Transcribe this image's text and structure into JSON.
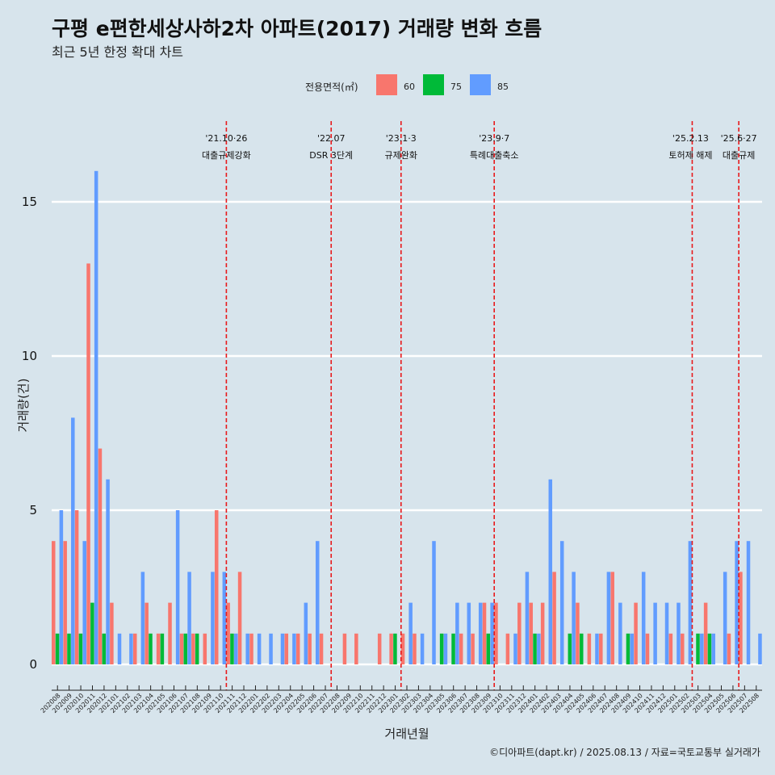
{
  "chart_data": {
    "type": "bar",
    "title": "구평 e편한세상사하2차 아파트(2017) 거래량 변화 흐름",
    "subtitle": "최근 5년 한정 확대 차트",
    "xlabel": "거래년월",
    "ylabel": "거래량(건)",
    "caption": "©디아파트(dapt.kr) / 2025.08.13 / 자료=국토교통부 실거래가",
    "legend": {
      "title": "전용면적(㎡)",
      "position": "top"
    },
    "ylim": [
      0,
      16.8
    ],
    "yticks": [
      0,
      5,
      10,
      15
    ],
    "grid": true,
    "categories": [
      "202008",
      "202009",
      "202010",
      "202011",
      "202012",
      "202101",
      "202102",
      "202103",
      "202104",
      "202105",
      "202106",
      "202107",
      "202108",
      "202109",
      "202110",
      "202111",
      "202112",
      "202201",
      "202202",
      "202203",
      "202204",
      "202205",
      "202206",
      "202207",
      "202208",
      "202209",
      "202210",
      "202211",
      "202212",
      "202301",
      "202302",
      "202303",
      "202304",
      "202305",
      "202306",
      "202307",
      "202308",
      "202309",
      "202310",
      "202311",
      "202312",
      "202401",
      "202402",
      "202403",
      "202404",
      "202405",
      "202406",
      "202407",
      "202408",
      "202409",
      "202410",
      "202411",
      "202412",
      "202501",
      "202502",
      "202503",
      "202504",
      "202505",
      "202506",
      "202507",
      "202508"
    ],
    "series": [
      {
        "name": "60",
        "color": "#f8766d",
        "values": [
          4,
          4,
          5,
          13,
          7,
          2,
          0,
          1,
          2,
          1,
          2,
          1,
          1,
          1,
          5,
          2,
          3,
          1,
          0,
          0,
          1,
          1,
          1,
          1,
          0,
          1,
          1,
          0,
          1,
          1,
          1,
          1,
          0,
          0,
          0,
          1,
          1,
          2,
          2,
          1,
          2,
          2,
          2,
          3,
          0,
          2,
          1,
          1,
          3,
          0,
          2,
          1,
          0,
          1,
          1,
          0,
          2,
          0,
          1,
          3,
          0
        ]
      },
      {
        "name": "75",
        "color": "#00ba38",
        "values": [
          1,
          1,
          1,
          2,
          1,
          0,
          0,
          0,
          1,
          1,
          0,
          1,
          1,
          0,
          0,
          1,
          0,
          0,
          0,
          0,
          0,
          0,
          0,
          0,
          0,
          0,
          0,
          0,
          0,
          1,
          0,
          0,
          0,
          1,
          1,
          0,
          0,
          1,
          0,
          0,
          0,
          1,
          0,
          0,
          1,
          1,
          0,
          0,
          0,
          1,
          0,
          0,
          0,
          0,
          0,
          1,
          1,
          0,
          0,
          0,
          0
        ]
      },
      {
        "name": "85",
        "color": "#619cff",
        "values": [
          5,
          8,
          4,
          16,
          6,
          1,
          1,
          3,
          0,
          0,
          5,
          3,
          0,
          3,
          3,
          1,
          1,
          1,
          1,
          1,
          1,
          2,
          4,
          0,
          0,
          0,
          0,
          0,
          0,
          0,
          2,
          1,
          4,
          1,
          2,
          2,
          2,
          2,
          0,
          1,
          3,
          1,
          6,
          4,
          3,
          0,
          1,
          3,
          2,
          1,
          3,
          2,
          2,
          2,
          4,
          1,
          1,
          3,
          4,
          4,
          1
        ]
      }
    ],
    "annotations": [
      {
        "after": "202110",
        "date": "'21.10·26",
        "text": "대출규제강화"
      },
      {
        "after": "202207",
        "date": "'22.07",
        "text": "DSR 3단계"
      },
      {
        "after": "202301",
        "date": "'23.1·3",
        "text": "규제완화"
      },
      {
        "after": "202309",
        "date": "'23.9·7",
        "text": "특례대출축소"
      },
      {
        "after": "202502",
        "date": "'25.2.13",
        "text": "토허제 해제"
      },
      {
        "after": "202506",
        "date": "'25.6·27",
        "text": "대출규제"
      }
    ]
  }
}
